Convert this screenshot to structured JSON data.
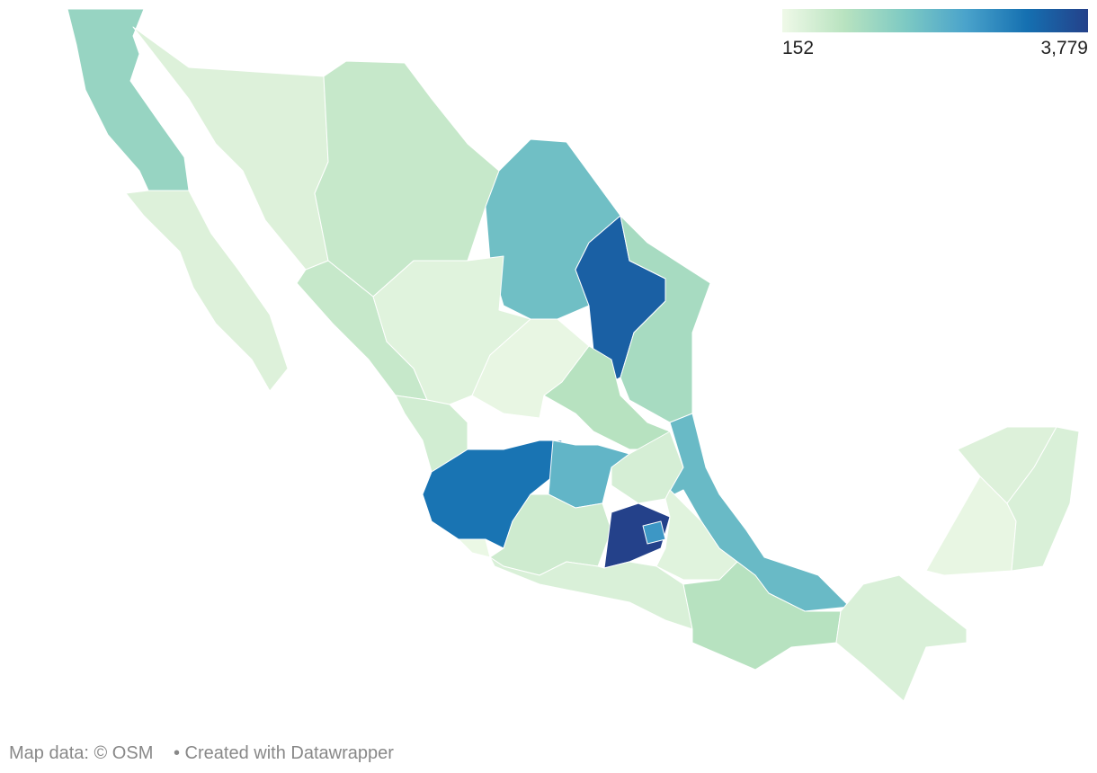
{
  "chart_data": {
    "type": "choropleth",
    "colors": [
      "#eff9e8",
      "#b9e3c0",
      "#7ecac3",
      "#4aa3cb",
      "#1570b1",
      "#24418a"
    ],
    "legend_ticks": [
      152,
      {
        "value": 3779,
        "label": "3,779"
      }
    ],
    "values": [
      1300,
      400,
      400,
      700,
      1800,
      3300,
      1100,
      700,
      350,
      250,
      550,
      3000,
      900,
      2000,
      600,
      500,
      3779,
      2500,
      1900,
      350,
      450,
      900,
      450,
      250,
      400,
      450,
      200
    ],
    "source": "Map data: © OSM",
    "credit": "• Created with Datawrapper"
  }
}
